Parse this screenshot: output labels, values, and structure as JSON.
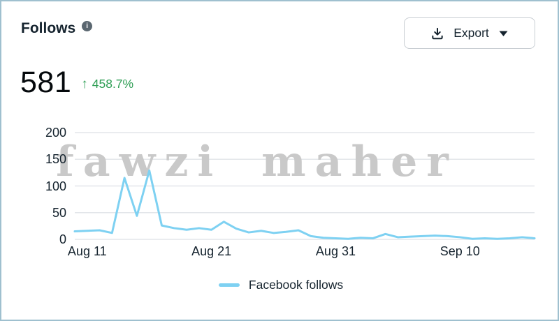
{
  "panel": {
    "title": "Follows",
    "export_label": "Export"
  },
  "metric": {
    "value": "581",
    "trend": "up",
    "trend_arrow": "↑",
    "change": "458.7%"
  },
  "colors": {
    "positive": "#2f9e55",
    "line": "#7ed1f2",
    "gridline": "#e3e6ea",
    "axis_text": "#15232e",
    "watermark": "#c9c9c9"
  },
  "chart_data": {
    "type": "line",
    "title": "Follows",
    "watermark": "fawzi maher",
    "grid": true,
    "legend_position": "bottom",
    "ylim": [
      0,
      200
    ],
    "y_ticks": [
      0,
      50,
      100,
      150,
      200
    ],
    "x": [
      "Aug 10",
      "Aug 11",
      "Aug 12",
      "Aug 13",
      "Aug 14",
      "Aug 15",
      "Aug 16",
      "Aug 17",
      "Aug 18",
      "Aug 19",
      "Aug 20",
      "Aug 21",
      "Aug 22",
      "Aug 23",
      "Aug 24",
      "Aug 25",
      "Aug 26",
      "Aug 27",
      "Aug 28",
      "Aug 29",
      "Aug 30",
      "Aug 31",
      "Sep 1",
      "Sep 2",
      "Sep 3",
      "Sep 4",
      "Sep 5",
      "Sep 6",
      "Sep 7",
      "Sep 8",
      "Sep 9",
      "Sep 10",
      "Sep 11",
      "Sep 12",
      "Sep 13",
      "Sep 14",
      "Sep 15",
      "Sep 16"
    ],
    "x_tick_labels": [
      "Aug 11",
      "Aug 21",
      "Aug 31",
      "Sep 10"
    ],
    "x_tick_indices": [
      1,
      11,
      21,
      31
    ],
    "series": [
      {
        "name": "Facebook follows",
        "color": "#7ed1f2",
        "values": [
          15,
          16,
          17,
          12,
          115,
          44,
          129,
          26,
          21,
          18,
          21,
          18,
          33,
          20,
          13,
          16,
          12,
          14,
          17,
          6,
          3,
          2,
          1,
          3,
          2,
          10,
          4,
          5,
          6,
          7,
          6,
          4,
          1,
          2,
          1,
          2,
          4,
          2
        ]
      }
    ]
  }
}
